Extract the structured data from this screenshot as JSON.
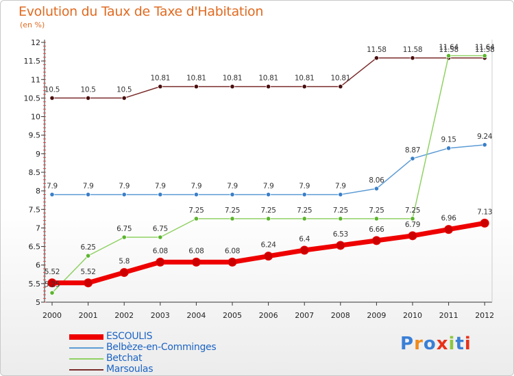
{
  "title": "Evolution du Taux de Taxe d'Habitation",
  "unit": "(en %)",
  "logo": {
    "text": "Proxiti",
    "colors": [
      "#3a7fd6",
      "#f08a1c",
      "#3a7fd6",
      "#e8311a",
      "#8cc63f",
      "#3a7fd6",
      "#e8311a"
    ]
  },
  "chart_data": {
    "type": "line",
    "title": "Evolution du Taux de Taxe d'Habitation",
    "ylabel": "(en %)",
    "x": [
      "2000",
      "2001",
      "2002",
      "2003",
      "2004",
      "2005",
      "2006",
      "2007",
      "2008",
      "2009",
      "2010",
      "2011",
      "2012"
    ],
    "ylim": [
      5,
      12
    ],
    "yticks": [
      "5",
      "5.5",
      "6",
      "6.5",
      "7",
      "7.5",
      "8",
      "8.5",
      "9",
      "9.5",
      "10",
      "10.5",
      "11",
      "11.5",
      "12"
    ],
    "grid": false,
    "legend_position": "bottom-left",
    "series": [
      {
        "name": "ESCOULIS",
        "color": "#ee0000",
        "values": [
          5.52,
          5.52,
          5.8,
          6.08,
          6.08,
          6.08,
          6.24,
          6.4,
          6.53,
          6.66,
          6.79,
          6.96,
          7.13
        ],
        "labels": [
          "5.52",
          "5.52",
          "5.8",
          "6.08",
          "6.08",
          "6.08",
          "6.24",
          "6.4",
          "6.53",
          "6.66",
          "6.79",
          "6.96",
          "7.13"
        ]
      },
      {
        "name": "Belbèze-en-Comminges",
        "color": "#5b9bd5",
        "values": [
          7.9,
          7.9,
          7.9,
          7.9,
          7.9,
          7.9,
          7.9,
          7.9,
          7.9,
          8.06,
          8.87,
          9.15,
          9.24
        ],
        "labels": [
          "7.9",
          "7.9",
          "7.9",
          "7.9",
          "7.9",
          "7.9",
          "7.9",
          "7.9",
          "7.9",
          "8.06",
          "8.87",
          "9.15",
          "9.24"
        ]
      },
      {
        "name": "Betchat",
        "color": "#8fd163",
        "values": [
          5.25,
          6.25,
          6.75,
          6.75,
          7.25,
          7.25,
          7.25,
          7.25,
          7.25,
          7.25,
          7.25,
          11.64,
          11.64
        ],
        "labels": [
          "5.25",
          "6.25",
          "6.75",
          "6.75",
          "7.25",
          "7.25",
          "7.25",
          "7.25",
          "7.25",
          "7.25",
          "7.25",
          "11.64",
          "11.64"
        ]
      },
      {
        "name": "Marsoulas",
        "color": "#7a2a2a",
        "values": [
          10.5,
          10.5,
          10.5,
          10.81,
          10.81,
          10.81,
          10.81,
          10.81,
          10.81,
          11.58,
          11.58,
          11.58,
          11.58
        ],
        "labels": [
          "10.5",
          "10.5",
          "10.5",
          "10.81",
          "10.81",
          "10.81",
          "10.81",
          "10.81",
          "10.81",
          "11.58",
          "11.58",
          "11.58",
          "11.58"
        ]
      }
    ]
  }
}
